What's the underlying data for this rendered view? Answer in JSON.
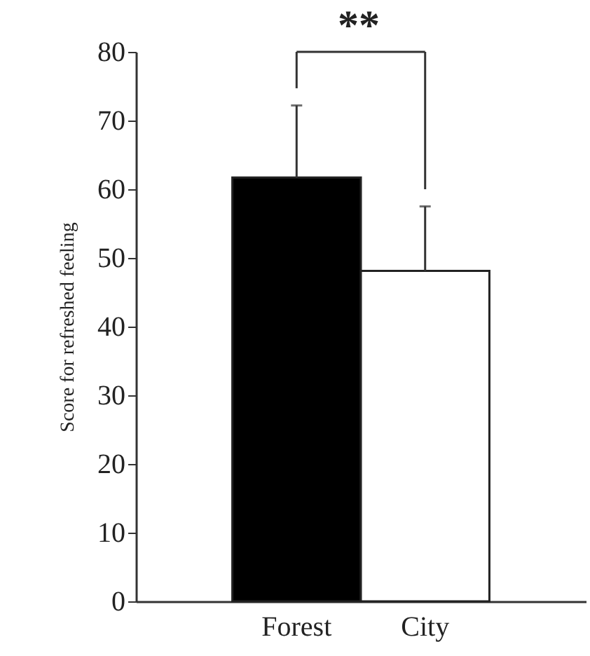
{
  "chart_data": {
    "type": "bar",
    "ylabel": "Score for refreshed feeling",
    "categories": [
      "Forest",
      "City"
    ],
    "values": [
      61.7,
      48.1
    ],
    "colors": [
      "#000000",
      "#ffffff"
    ],
    "errors": [
      [
        61.7,
        72.2
      ],
      [
        48.1,
        57.5
      ]
    ],
    "ylim": [
      0,
      80
    ],
    "yticks": [
      0,
      10,
      20,
      30,
      40,
      50,
      60,
      70,
      80
    ],
    "annotations": [
      {
        "text": "**"
      }
    ],
    "grid": false
  }
}
